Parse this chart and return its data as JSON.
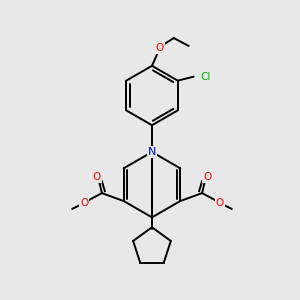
{
  "background_color": "#e8e8e8",
  "bond_color": "#000000",
  "atom_colors": {
    "O": "#ff0000",
    "N": "#0000cc",
    "Cl": "#00bb00",
    "C": "#000000"
  },
  "figsize": [
    3.0,
    3.0
  ],
  "dpi": 100
}
